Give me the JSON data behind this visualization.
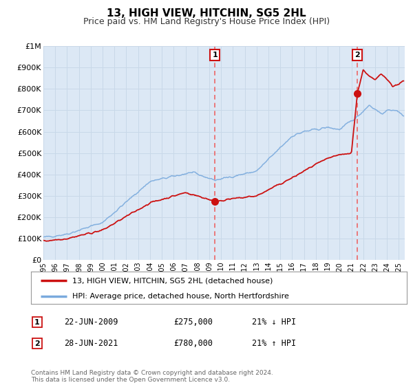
{
  "title": "13, HIGH VIEW, HITCHIN, SG5 2HL",
  "subtitle": "Price paid vs. HM Land Registry's House Price Index (HPI)",
  "ylim": [
    0,
    1000000
  ],
  "xlim_start": 1995.0,
  "xlim_end": 2025.5,
  "background_color": "#ffffff",
  "plot_bg_color": "#dce8f5",
  "grid_color": "#c8d8e8",
  "hpi_line_color": "#7aaadd",
  "price_line_color": "#cc1111",
  "sale1_x": 2009.47,
  "sale1_y": 275000,
  "sale2_x": 2021.49,
  "sale2_y": 780000,
  "annotation1_date": "22-JUN-2009",
  "annotation1_price": "£275,000",
  "annotation1_hpi": "21% ↓ HPI",
  "annotation2_date": "28-JUN-2021",
  "annotation2_price": "£780,000",
  "annotation2_hpi": "21% ↑ HPI",
  "legend_label1": "13, HIGH VIEW, HITCHIN, SG5 2HL (detached house)",
  "legend_label2": "HPI: Average price, detached house, North Hertfordshire",
  "footer": "Contains HM Land Registry data © Crown copyright and database right 2024.\nThis data is licensed under the Open Government Licence v3.0.",
  "ytick_labels": [
    "£0",
    "£100K",
    "£200K",
    "£300K",
    "£400K",
    "£500K",
    "£600K",
    "£700K",
    "£800K",
    "£900K",
    "£1M"
  ],
  "ytick_values": [
    0,
    100000,
    200000,
    300000,
    400000,
    500000,
    600000,
    700000,
    800000,
    900000,
    1000000
  ]
}
